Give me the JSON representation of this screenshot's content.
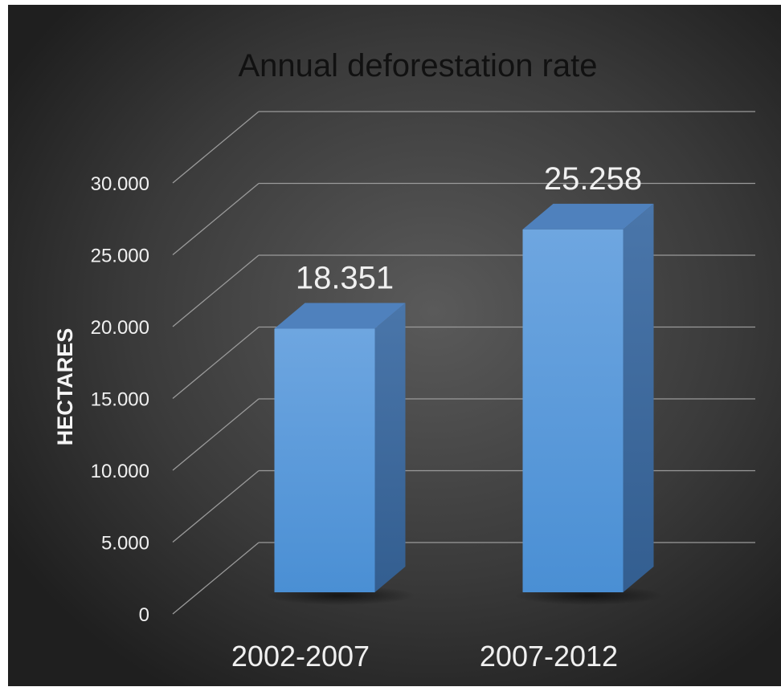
{
  "chart_data": {
    "type": "bar",
    "title": "Annual deforestation rate",
    "xlabel": "",
    "ylabel": "HECTARES",
    "categories": [
      "2002-2007",
      "2007-2012"
    ],
    "values": [
      18351,
      25258
    ],
    "value_labels": [
      "18.351",
      "25.258"
    ],
    "y_ticks": [
      0,
      5000,
      10000,
      15000,
      20000,
      25000,
      30000
    ],
    "y_tick_labels": [
      "0",
      "5.000",
      "10.000",
      "15.000",
      "20.000",
      "25.000",
      "30.000"
    ],
    "ylim": [
      0,
      30000
    ],
    "grid": true,
    "legend": "none",
    "style": "3d-column",
    "colors": {
      "bar_front": "#5b9bd5",
      "bar_top": "#4f81bd",
      "bar_side": "#3a6ea5",
      "background": "#3a3a3a",
      "text": "#f0f0f0",
      "title": "#111111",
      "gridline": "#9a9a9a"
    }
  }
}
